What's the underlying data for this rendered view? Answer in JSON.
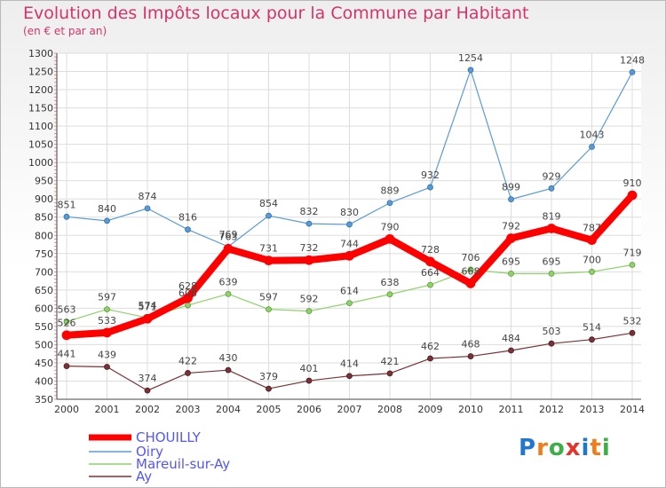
{
  "title": "Evolution des Impôts locaux pour la Commune par Habitant",
  "subtitle": "(en € et par an)",
  "logo": {
    "text": "Proxiti",
    "letters": [
      "P",
      "r",
      "o",
      "x",
      "i",
      "t",
      "i"
    ],
    "colors": [
      "#1f77d0",
      "#f07d1a",
      "#3fae49",
      "#e6332a",
      "#1f77d0",
      "#f07d1a",
      "#3fae49"
    ]
  },
  "chart_data": {
    "type": "line",
    "title": "Evolution des Impôts locaux pour la Commune par Habitant",
    "subtitle": "(en € et par an)",
    "x": [
      "2000",
      "2001",
      "2002",
      "2003",
      "2004",
      "2005",
      "2006",
      "2007",
      "2008",
      "2009",
      "2010",
      "2011",
      "2012",
      "2013",
      "2014"
    ],
    "ylim": [
      350,
      1300
    ],
    "yticks": [
      350,
      400,
      450,
      500,
      550,
      600,
      650,
      700,
      750,
      800,
      850,
      900,
      950,
      1000,
      1050,
      1100,
      1150,
      1200,
      1250,
      1300
    ],
    "grid": true,
    "legend_position": "bottom-left",
    "series": [
      {
        "name": "CHOUILLY",
        "color": "#ff0000",
        "values": [
          526,
          533,
          571,
          628,
          763,
          731,
          732,
          744,
          790,
          728,
          668,
          792,
          819,
          787,
          910
        ],
        "labels": [
          "526",
          "533",
          "571",
          "628",
          "763",
          "731",
          "732",
          "744",
          "790",
          "728",
          "668",
          "792",
          "819",
          "787",
          "910"
        ]
      },
      {
        "name": "Oiry",
        "color": "#5b9bd5",
        "values": [
          851,
          840,
          874,
          816,
          769,
          854,
          832,
          830,
          889,
          932,
          1254,
          899,
          929,
          1043,
          1248
        ],
        "labels": [
          "851",
          "840",
          "874",
          "816",
          "769",
          "854",
          "832",
          "830",
          "889",
          "932",
          "1254",
          "899",
          "929",
          "1043",
          "1248"
        ]
      },
      {
        "name": "Mareuil-sur-Ay",
        "color": "#8fd16a",
        "values": [
          563,
          597,
          574,
          608,
          639,
          597,
          592,
          614,
          638,
          664,
          706,
          695,
          695,
          700,
          719
        ],
        "labels": [
          "563",
          "597",
          "574",
          "608",
          "639",
          "597",
          "592",
          "614",
          "638",
          "664",
          "706",
          "695",
          "695",
          "700",
          "719"
        ]
      },
      {
        "name": "Ay",
        "color": "#7a3238",
        "values": [
          441,
          439,
          374,
          422,
          430,
          379,
          401,
          414,
          421,
          462,
          468,
          484,
          503,
          514,
          532
        ],
        "labels": [
          "441",
          "439",
          "374",
          "422",
          "430",
          "379",
          "401",
          "414",
          "421",
          "462",
          "468",
          "484",
          "503",
          "514",
          "532"
        ]
      }
    ]
  }
}
